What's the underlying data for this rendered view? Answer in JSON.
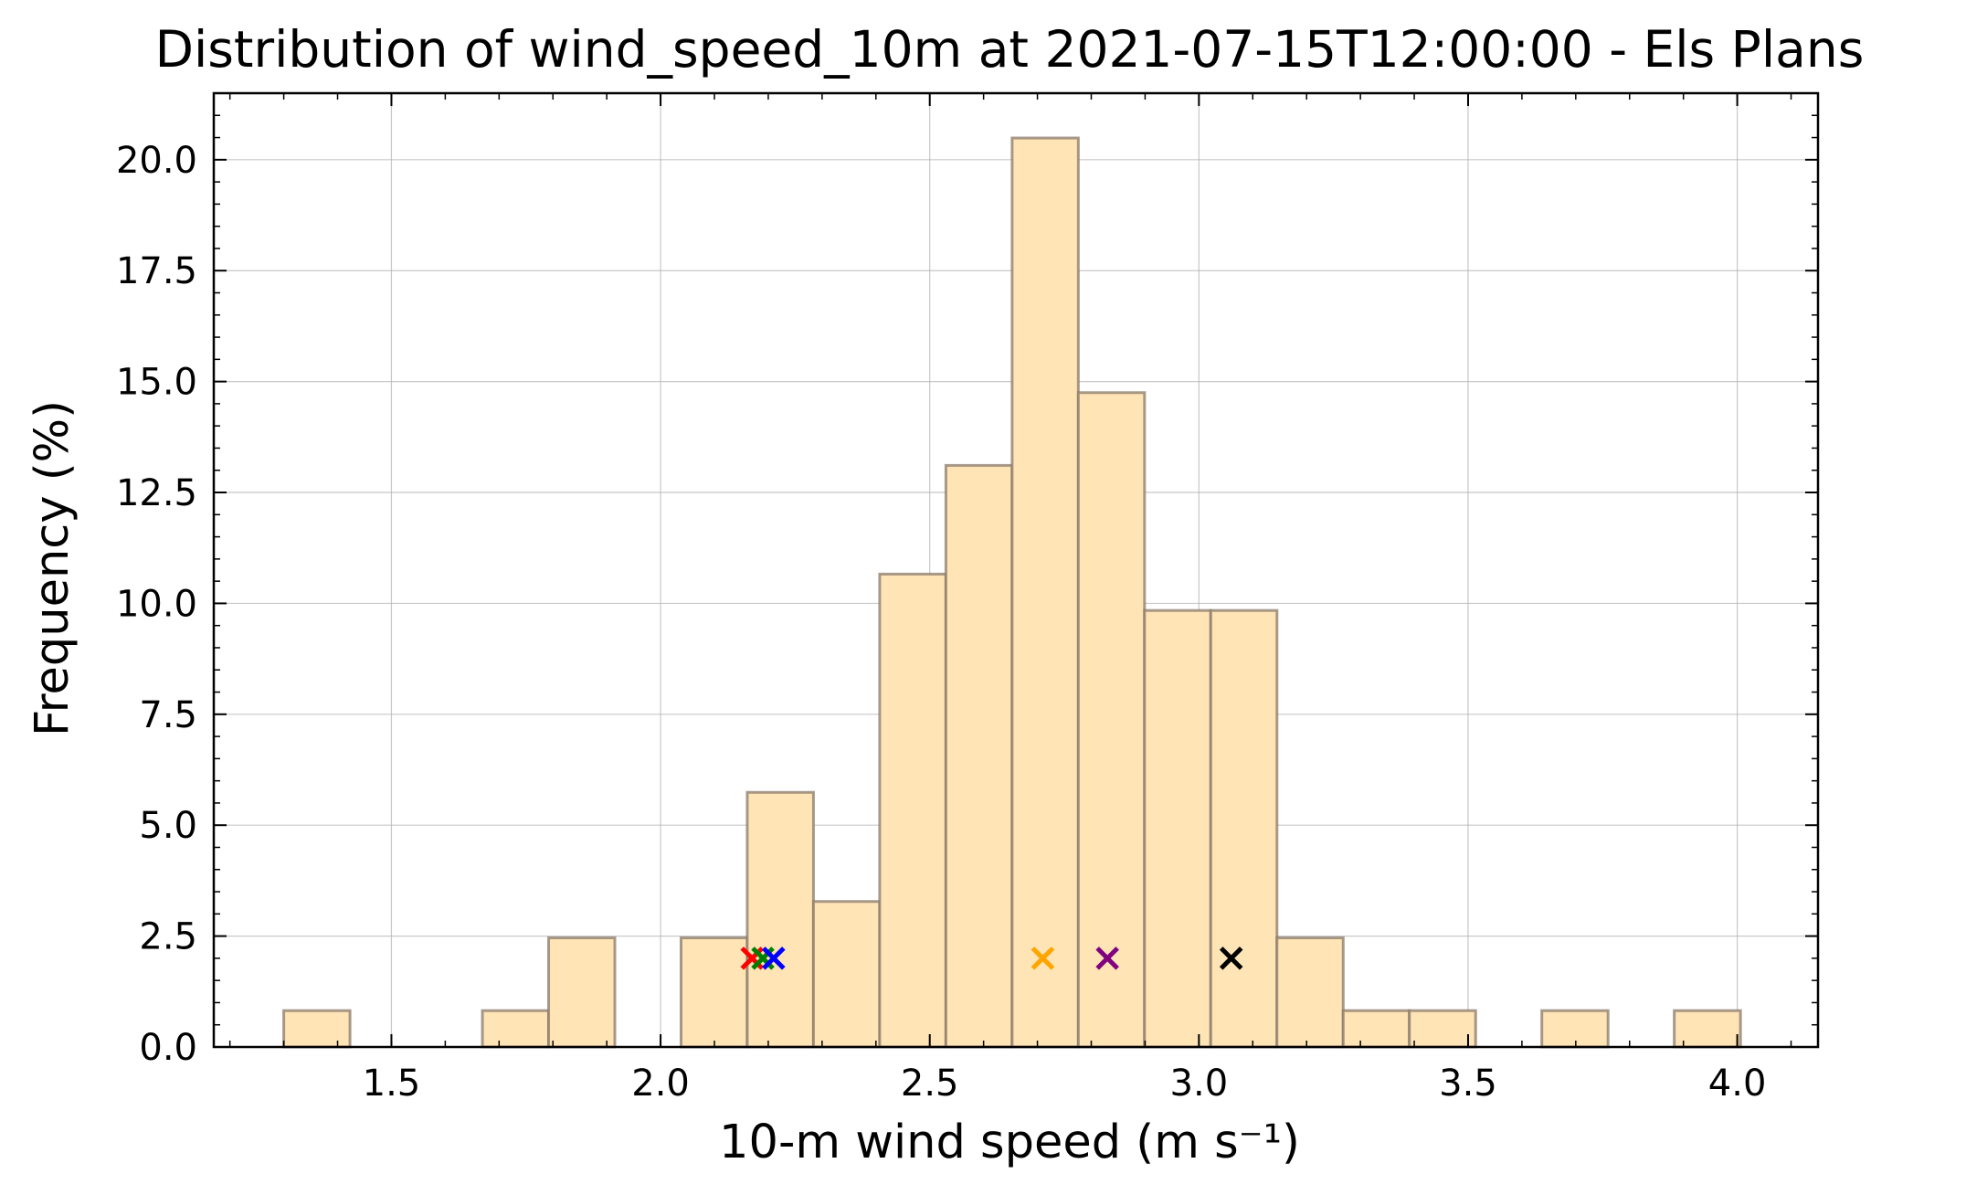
{
  "chart_data": {
    "type": "bar",
    "title": "Distribution of wind_speed_10m at 2021-07-15T12:00:00 - Els Plans",
    "xlabel": "10-m wind speed (m s⁻¹)",
    "ylabel": "Frequency (%)",
    "xlim": [
      1.17,
      4.15
    ],
    "ylim": [
      0,
      21.5
    ],
    "grid": true,
    "xticks": [
      {
        "value": 1.5,
        "label": "1.5"
      },
      {
        "value": 2.0,
        "label": "2.0"
      },
      {
        "value": 2.5,
        "label": "2.5"
      },
      {
        "value": 3.0,
        "label": "3.0"
      },
      {
        "value": 3.5,
        "label": "3.5"
      },
      {
        "value": 4.0,
        "label": "4.0"
      }
    ],
    "yticks": [
      {
        "value": 0.0,
        "label": "0.0"
      },
      {
        "value": 2.5,
        "label": "2.5"
      },
      {
        "value": 5.0,
        "label": "5.0"
      },
      {
        "value": 7.5,
        "label": "7.5"
      },
      {
        "value": 10.0,
        "label": "10.0"
      },
      {
        "value": 12.5,
        "label": "12.5"
      },
      {
        "value": 15.0,
        "label": "15.0"
      },
      {
        "value": 17.5,
        "label": "17.5"
      },
      {
        "value": 20.0,
        "label": "20.0"
      }
    ],
    "bin_edges": [
      1.3,
      1.423,
      1.546,
      1.669,
      1.792,
      1.915,
      2.038,
      2.161,
      2.284,
      2.407,
      2.53,
      2.653,
      2.776,
      2.899,
      3.022,
      3.145,
      3.268,
      3.391,
      3.514,
      3.637,
      3.76,
      3.883,
      4.006
    ],
    "values": [
      0.82,
      0,
      0,
      0.82,
      2.46,
      0,
      2.46,
      5.74,
      3.28,
      10.66,
      13.11,
      20.49,
      14.75,
      9.84,
      9.84,
      2.46,
      0.82,
      0.82,
      0,
      0.82,
      0,
      0.82
    ],
    "bar_fill": "#ffe4b5",
    "bar_edge": "#8a7a6a",
    "markers": [
      {
        "x": 2.17,
        "y": 2.0,
        "color": "#ff0000"
      },
      {
        "x": 2.19,
        "y": 2.0,
        "color": "#008000"
      },
      {
        "x": 2.21,
        "y": 2.0,
        "color": "#0000ff"
      },
      {
        "x": 2.71,
        "y": 2.0,
        "color": "#ffa500"
      },
      {
        "x": 2.83,
        "y": 2.0,
        "color": "#800080"
      },
      {
        "x": 3.06,
        "y": 2.0,
        "color": "#000000"
      }
    ]
  }
}
